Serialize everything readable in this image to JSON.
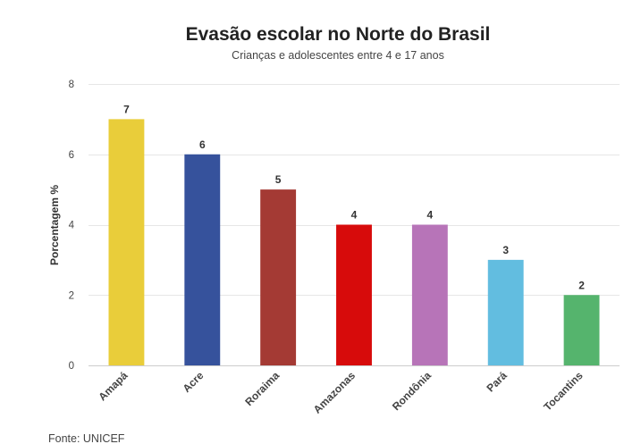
{
  "chart_data": {
    "type": "bar",
    "title": "Evasão escolar no Norte do Brasil",
    "subtitle": "Crianças e adolescentes entre 4 e 17 anos",
    "xlabel": "",
    "ylabel": "Porcentagem %",
    "categories": [
      "Amapá",
      "Acre",
      "Roraima",
      "Amazonas",
      "Rondônia",
      "Pará",
      "Tocantins"
    ],
    "values": [
      7,
      6,
      5,
      4,
      4,
      3,
      2
    ],
    "value_labels": [
      "7",
      "6",
      "5",
      "4",
      "4",
      "3",
      "2"
    ],
    "colors": [
      "#e9cd3a",
      "#36529c",
      "#a43a34",
      "#d70b0b",
      "#b774b8",
      "#62bde0",
      "#55b46d"
    ],
    "ylim": [
      0,
      8
    ],
    "yticks": [
      0,
      2,
      4,
      6,
      8
    ],
    "grid": true,
    "legend": "none",
    "source": "Fonte: UNICEF"
  }
}
